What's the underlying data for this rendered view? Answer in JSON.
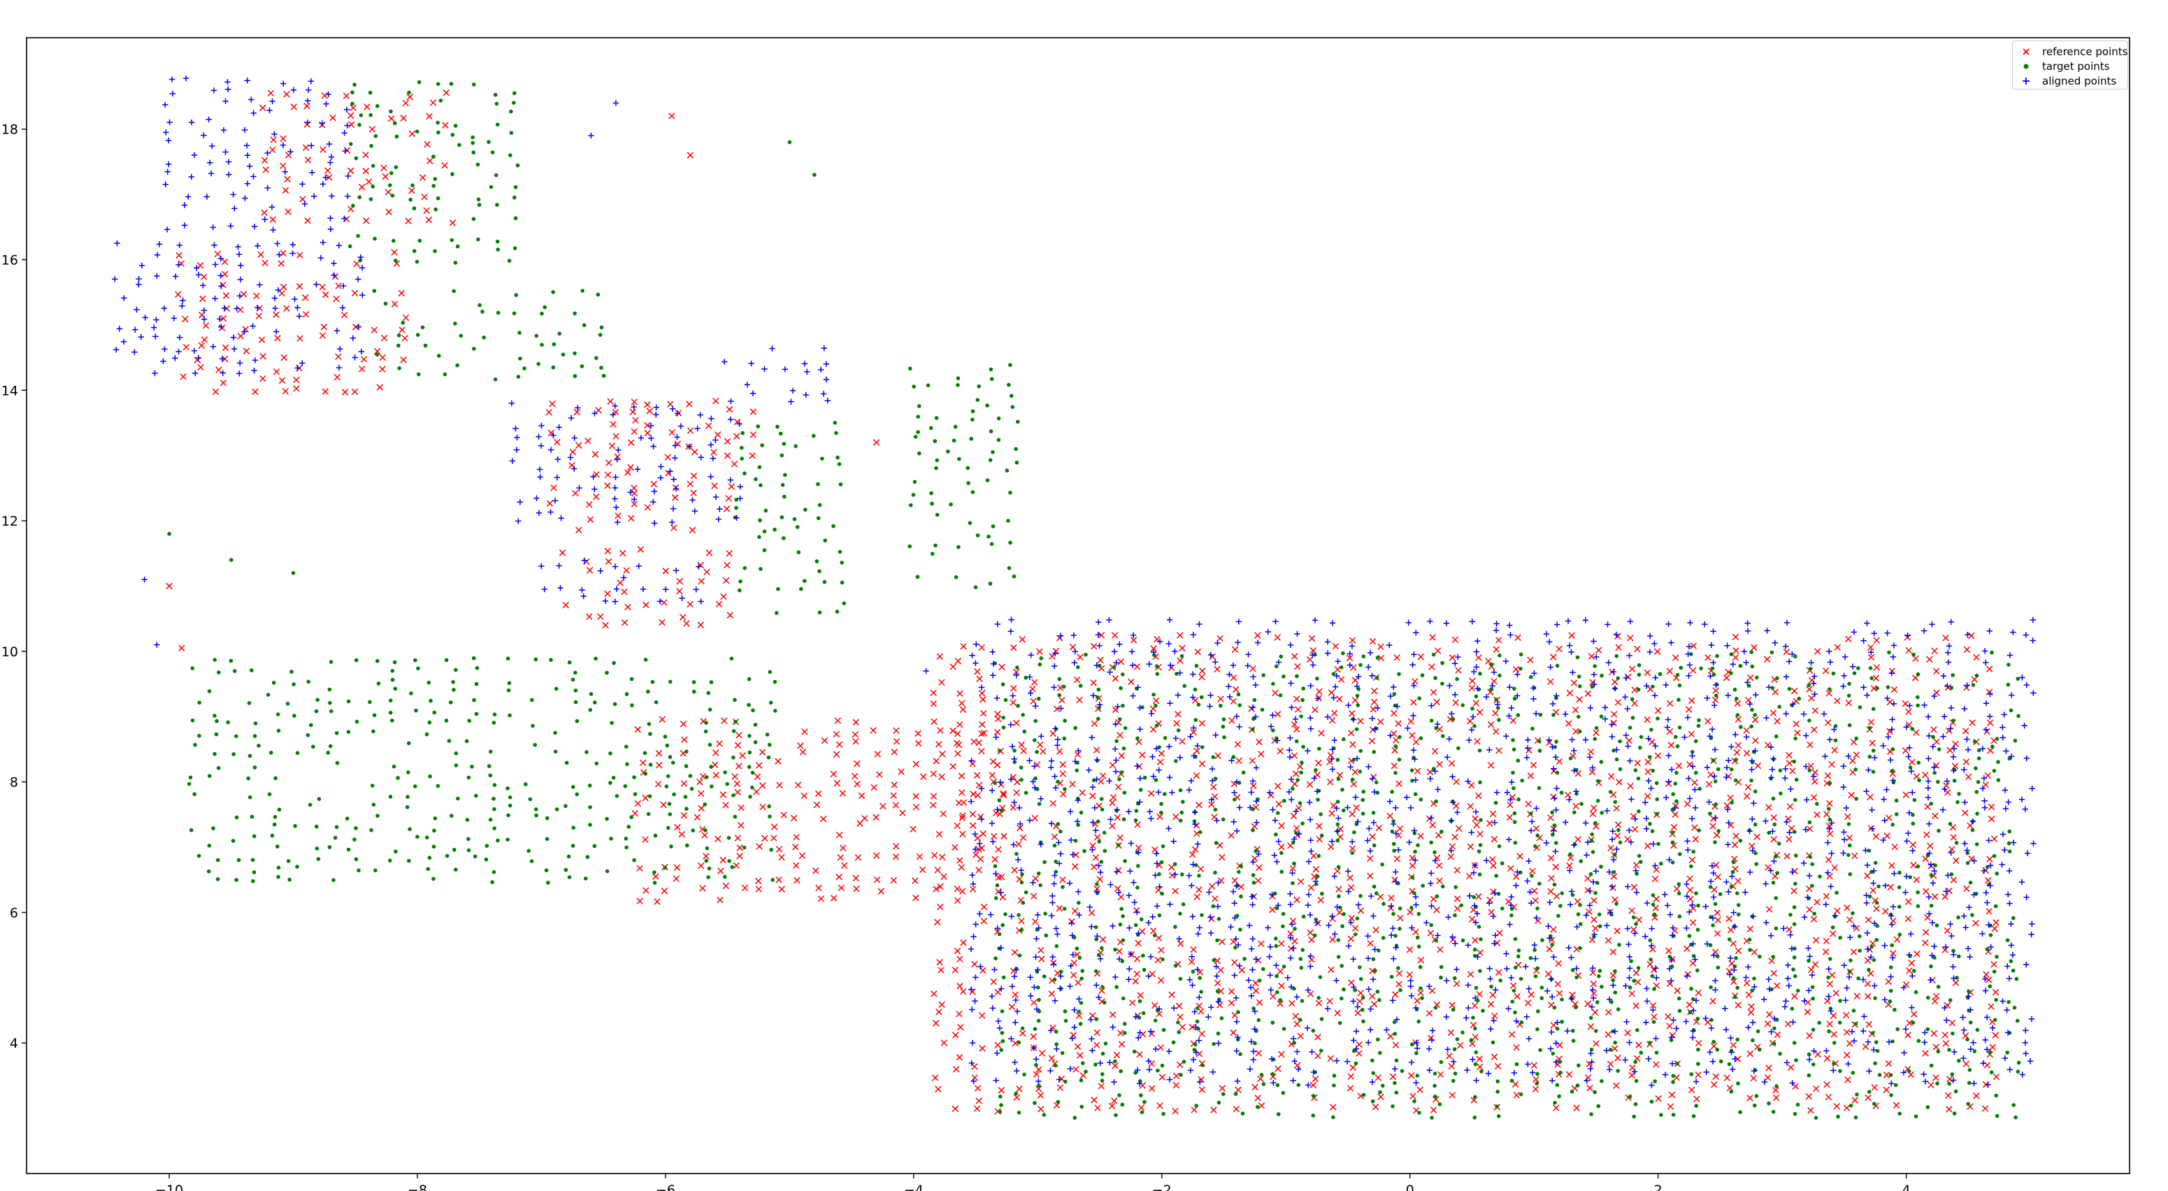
{
  "chart_data": {
    "type": "scatter",
    "title": "",
    "xlabel": "",
    "ylabel": "",
    "xlim": [
      -11.15,
      5.8
    ],
    "ylim": [
      2.0,
      19.4
    ],
    "xticks": [
      -10,
      -8,
      -6,
      -4,
      -2,
      0,
      2,
      4
    ],
    "yticks": [
      4,
      6,
      8,
      10,
      12,
      14,
      16,
      18
    ],
    "grid": false,
    "legend_position": "top-right",
    "series": [
      {
        "name": "reference points",
        "marker": "x",
        "color": "#ff0000",
        "regions": [
          {
            "x": [
              -9.9,
              -8.0
            ],
            "y": [
              14.0,
              16.1
            ]
          },
          {
            "x": [
              -9.2,
              -7.6
            ],
            "y": [
              16.6,
              18.6
            ]
          },
          {
            "x": [
              -6.9,
              -5.2
            ],
            "y": [
              11.9,
              13.9
            ]
          },
          {
            "x": [
              -6.8,
              -5.5
            ],
            "y": [
              10.4,
              11.6
            ]
          },
          {
            "x": [
              -3.8,
              4.8
            ],
            "y": [
              3.0,
              10.3
            ]
          },
          {
            "x": [
              -6.2,
              -3.2
            ],
            "y": [
              6.2,
              9.0
            ]
          }
        ],
        "isolated": [
          {
            "x": -5.95,
            "y": 18.2
          },
          {
            "x": -5.8,
            "y": 17.6
          },
          {
            "x": -10.0,
            "y": 11.0
          },
          {
            "x": -9.9,
            "y": 10.05
          },
          {
            "x": -4.3,
            "y": 13.2
          }
        ]
      },
      {
        "name": "target points",
        "marker": "dot",
        "color": "#008000",
        "regions": [
          {
            "x": [
              -8.5,
              -7.2
            ],
            "y": [
              16.0,
              18.8
            ]
          },
          {
            "x": [
              -8.3,
              -6.5
            ],
            "y": [
              14.2,
              15.5
            ]
          },
          {
            "x": [
              -4.0,
              -3.1
            ],
            "y": [
              11.0,
              14.4
            ]
          },
          {
            "x": [
              -5.4,
              -4.5
            ],
            "y": [
              10.6,
              13.5
            ]
          },
          {
            "x": [
              -3.3,
              5.0
            ],
            "y": [
              2.9,
              10.0
            ]
          },
          {
            "x": [
              -9.8,
              -5.0
            ],
            "y": [
              6.5,
              10.0
            ]
          }
        ],
        "isolated": [
          {
            "x": -5.0,
            "y": 17.8
          },
          {
            "x": -4.8,
            "y": 17.3
          },
          {
            "x": -10.0,
            "y": 11.8
          },
          {
            "x": -9.5,
            "y": 11.4
          },
          {
            "x": -9.0,
            "y": 11.2
          }
        ]
      },
      {
        "name": "aligned points",
        "marker": "plus",
        "color": "#0000ff",
        "regions": [
          {
            "x": [
              -10.4,
              -8.4
            ],
            "y": [
              14.3,
              16.3
            ]
          },
          {
            "x": [
              -10.0,
              -8.5
            ],
            "y": [
              16.5,
              18.8
            ]
          },
          {
            "x": [
              -7.2,
              -5.3
            ],
            "y": [
              12.0,
              13.8
            ]
          },
          {
            "x": [
              -7.0,
              -5.6
            ],
            "y": [
              10.8,
              11.6
            ]
          },
          {
            "x": [
              -5.5,
              -4.6
            ],
            "y": [
              13.8,
              14.7
            ]
          },
          {
            "x": [
              -3.5,
              5.1
            ],
            "y": [
              3.4,
              10.5
            ]
          }
        ],
        "isolated": [
          {
            "x": -6.4,
            "y": 18.4
          },
          {
            "x": -6.6,
            "y": 17.9
          },
          {
            "x": -10.2,
            "y": 11.1
          },
          {
            "x": -10.1,
            "y": 10.1
          },
          {
            "x": -3.9,
            "y": 9.7
          }
        ]
      }
    ]
  }
}
